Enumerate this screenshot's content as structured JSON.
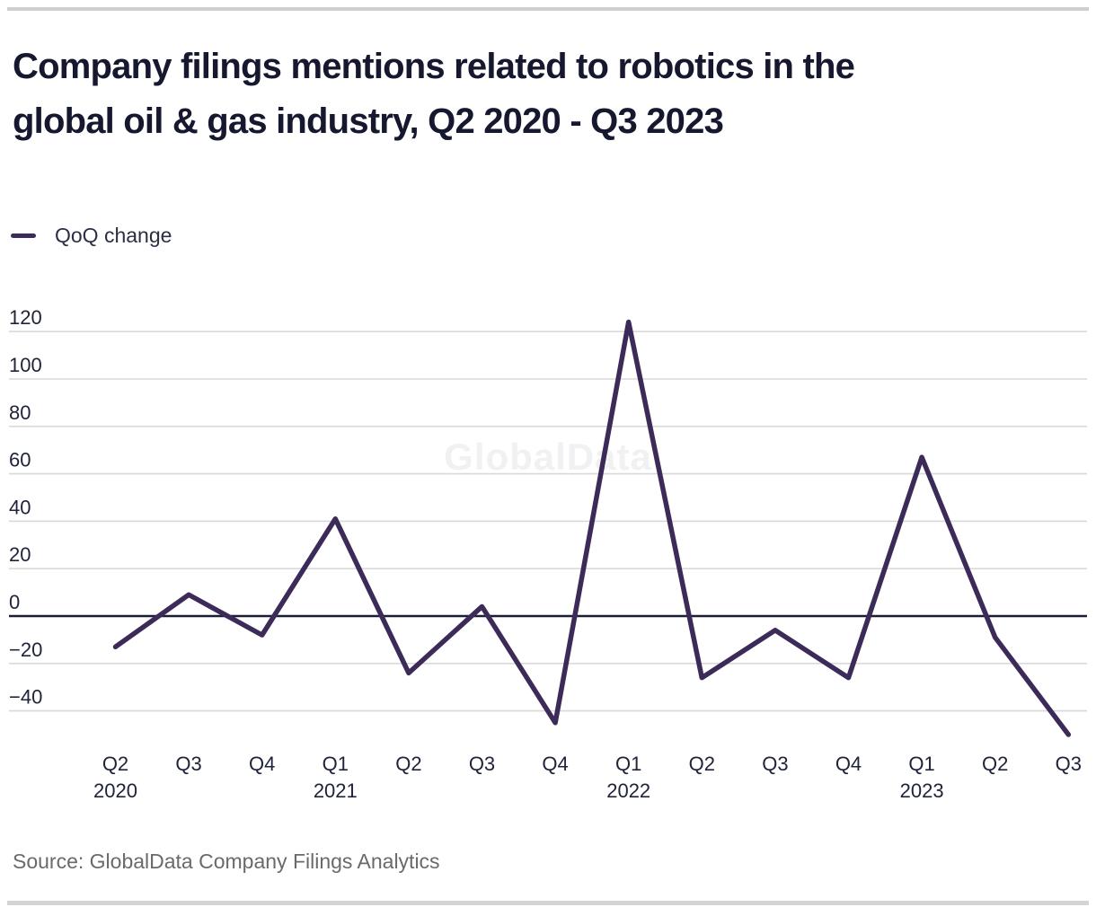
{
  "page": {
    "title": "Company filings mentions related to robotics in the global oil & gas industry, Q2 2020 - Q3 2023",
    "title_lines": [
      "Company filings mentions related to robotics in the",
      "global oil & gas industry, Q2 2020 - Q3 2023"
    ],
    "watermark": "GlobalData",
    "source": "Source: GlobalData Company Filings Analytics"
  },
  "legend": {
    "label": "QoQ change"
  },
  "colors": {
    "line": "#3c2b58",
    "grid": "#d9d9d9",
    "zero_line": "#1a1e33",
    "title_text": "#16182f",
    "axis_text": "#20243a",
    "source_text": "#6a6a6a",
    "rule": "#cfcfcf",
    "watermark": "#f1f1f3"
  },
  "chart_data": {
    "type": "line",
    "title": "Company filings mentions related to robotics in the global oil & gas industry, Q2 2020 - Q3 2023",
    "series": [
      {
        "name": "QoQ change",
        "values": [
          -13,
          9,
          -8,
          41,
          -24,
          4,
          -45,
          124,
          -26,
          -6,
          -26,
          67,
          -9,
          -50
        ]
      }
    ],
    "categories": [
      "Q2 2020",
      "Q3 2020",
      "Q4 2020",
      "Q1 2021",
      "Q2 2021",
      "Q3 2021",
      "Q4 2021",
      "Q1 2022",
      "Q2 2022",
      "Q3 2022",
      "Q4 2022",
      "Q1 2023",
      "Q2 2023",
      "Q3 2023"
    ],
    "x_tick_labels": [
      "Q2",
      "Q3",
      "Q4",
      "Q1",
      "Q2",
      "Q3",
      "Q4",
      "Q1",
      "Q2",
      "Q3",
      "Q4",
      "Q1",
      "Q2",
      "Q3"
    ],
    "year_labels": {
      "0": "2020",
      "3": "2021",
      "7": "2022",
      "11": "2023"
    },
    "y_axis": {
      "ticks": [
        120,
        100,
        80,
        60,
        40,
        20,
        0,
        -20,
        -40
      ],
      "tick_interval": 20
    },
    "ylim": [
      -55,
      130
    ],
    "grid": "horizontal",
    "legend_position": "top-left",
    "xlabel": "",
    "ylabel": ""
  }
}
